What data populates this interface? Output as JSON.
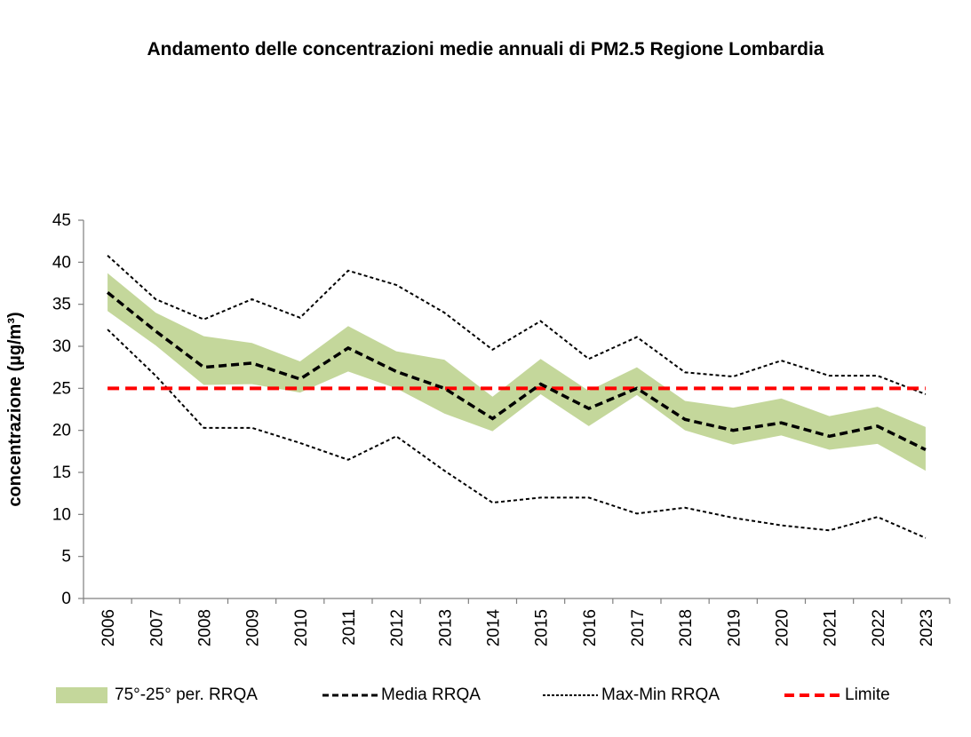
{
  "chart_data": {
    "type": "line",
    "title": "Andamento delle concentrazioni medie annuali di PM2.5 Regione Lombardia",
    "xlabel": "",
    "ylabel": "concentrazione (µg/m³)",
    "ylim": [
      0,
      45
    ],
    "yticks": [
      0,
      5,
      10,
      15,
      20,
      25,
      30,
      35,
      40,
      45
    ],
    "grid": false,
    "legend_position": "bottom",
    "categories": [
      "2006",
      "2007",
      "2008",
      "2009",
      "2010",
      "2011",
      "2012",
      "2013",
      "2014",
      "2015",
      "2016",
      "2017",
      "2018",
      "2019",
      "2020",
      "2021",
      "2022",
      "2023"
    ],
    "series": [
      {
        "name": "75°-25° per. RRQA",
        "kind": "band",
        "color": "#c4d79b",
        "upper": [
          38.7,
          34.0,
          31.2,
          30.4,
          28.2,
          32.4,
          29.4,
          28.4,
          24.0,
          28.5,
          24.7,
          27.5,
          23.5,
          22.7,
          23.8,
          21.7,
          22.8,
          20.4
        ],
        "lower": [
          34.2,
          30.1,
          25.4,
          25.5,
          24.5,
          27.0,
          25.0,
          22.0,
          19.9,
          24.3,
          20.5,
          24.2,
          20.0,
          18.3,
          19.4,
          17.7,
          18.4,
          15.2
        ]
      },
      {
        "name": "Media RRQA",
        "kind": "line",
        "color": "#000000",
        "values": [
          36.4,
          31.8,
          27.5,
          28.0,
          26.1,
          29.8,
          27.0,
          25.0,
          21.4,
          25.5,
          22.6,
          25.0,
          21.3,
          20.0,
          20.9,
          19.3,
          20.5,
          17.7
        ]
      },
      {
        "name": "Max-Min RRQA",
        "kind": "range-lines",
        "color": "#000000",
        "max": [
          40.8,
          35.6,
          33.2,
          35.6,
          33.4,
          39.0,
          37.3,
          34.0,
          29.6,
          33.0,
          28.5,
          31.1,
          26.9,
          26.4,
          28.3,
          26.5,
          26.5,
          24.3
        ],
        "min": [
          32.0,
          26.5,
          20.3,
          20.3,
          18.5,
          16.5,
          19.3,
          15.2,
          11.4,
          12.0,
          12.0,
          10.1,
          10.8,
          9.6,
          8.7,
          8.1,
          9.7,
          7.2
        ]
      },
      {
        "name": "Limite",
        "kind": "limit",
        "color": "#ff0000",
        "values": [
          25,
          25,
          25,
          25,
          25,
          25,
          25,
          25,
          25,
          25,
          25,
          25,
          25,
          25,
          25,
          25,
          25,
          25
        ]
      }
    ]
  }
}
